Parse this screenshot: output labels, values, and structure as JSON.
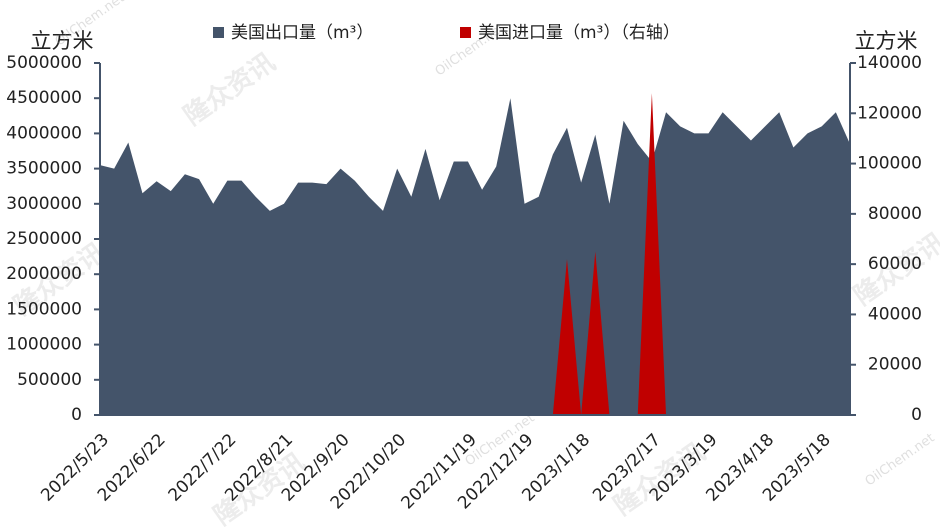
{
  "chart_data": {
    "type": "area",
    "y_unit": "立方米",
    "y2_unit": "立方米",
    "watermark": [
      "隆众资讯",
      "OilChem.net"
    ],
    "categories": [
      "2022/5/23",
      null,
      null,
      null,
      "2022/6/22",
      null,
      null,
      null,
      null,
      "2022/7/22",
      null,
      null,
      null,
      "2022/8/21",
      null,
      null,
      null,
      "2022/9/20",
      null,
      null,
      null,
      "2022/10/20",
      null,
      null,
      null,
      null,
      "2022/11/19",
      null,
      null,
      null,
      "2022/12/19",
      null,
      null,
      null,
      "2023/1/18",
      null,
      null,
      null,
      null,
      "2023/2/17",
      null,
      null,
      null,
      "2023/3/19",
      null,
      null,
      null,
      "2023/4/18",
      null,
      null,
      null,
      "2023/5/18",
      null,
      null
    ],
    "series": [
      {
        "name": "美国出口量（m³）",
        "color": "#44546a",
        "values": [
          3550000,
          3500000,
          3870000,
          3150000,
          3320000,
          3180000,
          3420000,
          3350000,
          3000000,
          3330000,
          3330000,
          3100000,
          2900000,
          3000000,
          3300000,
          3300000,
          3280000,
          3500000,
          3330000,
          3100000,
          2900000,
          3500000,
          3100000,
          3780000,
          3050000,
          3600000,
          3600000,
          3200000,
          3530000,
          4500000,
          3000000,
          3100000,
          3700000,
          4080000,
          3300000,
          3980000,
          3000000,
          4180000,
          3850000,
          3600000,
          4300000,
          4100000,
          4000000,
          4000000,
          4300000,
          4100000,
          3900000,
          4100000,
          4300000,
          3800000,
          4000000,
          4100000,
          4300000,
          3850000
        ]
      },
      {
        "name": "美国进口量（m³）（右轴）",
        "color": "#c00000",
        "axis": "y2",
        "values": [
          0,
          0,
          0,
          0,
          0,
          0,
          0,
          0,
          0,
          0,
          0,
          0,
          0,
          0,
          0,
          0,
          0,
          0,
          0,
          0,
          0,
          0,
          0,
          0,
          0,
          0,
          0,
          0,
          0,
          0,
          0,
          0,
          0,
          62000,
          0,
          65000,
          0,
          0,
          0,
          128000,
          0,
          0,
          0,
          0,
          0,
          0,
          0,
          0,
          0,
          0,
          0,
          0,
          0,
          0
        ]
      }
    ],
    "ylim": [
      0,
      5000000
    ],
    "yticks": [
      0,
      500000,
      1000000,
      1500000,
      2000000,
      2500000,
      3000000,
      3500000,
      4000000,
      4500000,
      5000000
    ],
    "y2lim": [
      0,
      140000
    ],
    "y2ticks": [
      0,
      20000,
      40000,
      60000,
      80000,
      100000,
      120000,
      140000
    ]
  }
}
